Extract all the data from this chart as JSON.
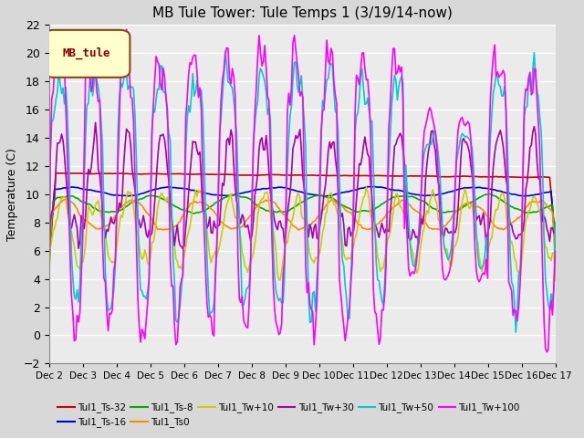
{
  "title": "MB Tule Tower: Tule Temps 1 (3/19/14-now)",
  "ylabel": "Temperature (C)",
  "xlim_days": [
    0,
    15
  ],
  "ylim": [
    -2,
    22
  ],
  "yticks": [
    -2,
    0,
    2,
    4,
    6,
    8,
    10,
    12,
    14,
    16,
    18,
    20,
    22
  ],
  "xtick_labels": [
    "Dec 2",
    "Dec 3",
    "Dec 4",
    "Dec 5",
    "Dec 6",
    "Dec 7",
    "Dec 8",
    "Dec 9",
    "Dec 10",
    "Dec 11",
    "Dec 12",
    "Dec 13",
    "Dec 14",
    "Dec 15",
    "Dec 16",
    "Dec 17"
  ],
  "plot_bg_color": "#ebebeb",
  "fig_bg_color": "#d8d8d8",
  "legend_box_label": "MB_tule",
  "legend_box_color": "#ffffcc",
  "legend_box_edge": "#8b4513",
  "legend_box_text": "#8b0000",
  "series": [
    {
      "label": "Tul1_Ts-32",
      "color": "#cc0000",
      "lw": 1.2
    },
    {
      "label": "Tul1_Ts-16",
      "color": "#0000cc",
      "lw": 1.2
    },
    {
      "label": "Tul1_Ts-8",
      "color": "#00aa00",
      "lw": 1.2
    },
    {
      "label": "Tul1_Ts0",
      "color": "#ff8800",
      "lw": 1.2
    },
    {
      "label": "Tul1_Tw+10",
      "color": "#cccc00",
      "lw": 1.2
    },
    {
      "label": "Tul1_Tw+30",
      "color": "#aa00aa",
      "lw": 1.2
    },
    {
      "label": "Tul1_Tw+50",
      "color": "#00cccc",
      "lw": 1.2
    },
    {
      "label": "Tul1_Tw+100",
      "color": "#ff00ff",
      "lw": 1.2
    }
  ]
}
